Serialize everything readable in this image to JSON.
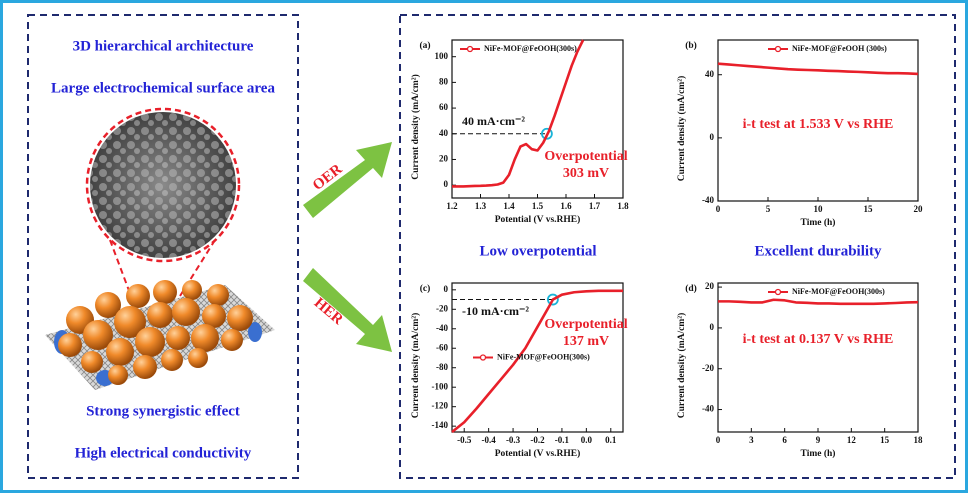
{
  "left_panel": {
    "texts": [
      "3D hierarchical architecture",
      "Large electrochemical surface area",
      "Strong synergistic effect",
      "High electrical conductivity"
    ]
  },
  "arrows": {
    "upper": "OER",
    "lower": "HER"
  },
  "captions": [
    "Low overpotential",
    "Excellent durability"
  ],
  "chart_data": [
    {
      "type": "line",
      "panel_label": "(a)",
      "x_label": "Potential (V vs.RHE)",
      "y_label": "Current density (mA/cm²)",
      "x": [
        1.2,
        1.22,
        1.24,
        1.26,
        1.28,
        1.3,
        1.32,
        1.34,
        1.36,
        1.38,
        1.4,
        1.42,
        1.44,
        1.46,
        1.48,
        1.5,
        1.52,
        1.54,
        1.56,
        1.58,
        1.6,
        1.62,
        1.64,
        1.66
      ],
      "series": [
        {
          "name": "NiFe-MOF@FeOOH(300s)",
          "color": "#e8202a",
          "values": [
            -1,
            -1,
            -1,
            -0.8,
            -0.6,
            -0.5,
            -0.3,
            0,
            0.5,
            2,
            8,
            20,
            30,
            32,
            28,
            27,
            33,
            42,
            54,
            67,
            80,
            93,
            104,
            113
          ]
        }
      ],
      "xlim": [
        1.2,
        1.8
      ],
      "ylim": [
        -10,
        113
      ],
      "xticks": [
        1.2,
        1.3,
        1.4,
        1.5,
        1.6,
        1.7,
        1.8
      ],
      "yticks": [
        0,
        20,
        40,
        60,
        80,
        100
      ],
      "legend": "upper left",
      "reference": {
        "x": 1.533,
        "y": 40
      },
      "annotations": [
        "40 mA·cm⁻²",
        "Overpotential",
        "303 mV"
      ]
    },
    {
      "type": "line",
      "panel_label": "(b)",
      "x_label": "Time (h)",
      "y_label": "Current density (mA/cm²)",
      "x": [
        0,
        1,
        2,
        3,
        4,
        5,
        6,
        7,
        8,
        9,
        10,
        11,
        12,
        13,
        14,
        15,
        16,
        17,
        18,
        19,
        20
      ],
      "series": [
        {
          "name": "NiFe-MOF@FeOOH (300s)",
          "color": "#e8202a",
          "values": [
            47,
            46.5,
            46,
            45.5,
            45,
            44.5,
            44,
            43.5,
            43.2,
            43,
            42.8,
            42.5,
            42.3,
            42,
            41.8,
            41.5,
            41.2,
            41,
            41,
            40.8,
            40.5
          ]
        }
      ],
      "xlim": [
        0,
        20
      ],
      "ylim": [
        -40,
        62
      ],
      "xticks": [
        0,
        5,
        10,
        15,
        20
      ],
      "yticks": [
        -40,
        0,
        40
      ],
      "legend": "upper right",
      "annotations": [
        "i-t test at 1.533 V vs RHE"
      ]
    },
    {
      "type": "line",
      "panel_label": "(c)",
      "x_label": "Potential (V vs.RHE)",
      "y_label": "Current density (mA/cm²)",
      "x": [
        -0.55,
        -0.5,
        -0.45,
        -0.4,
        -0.35,
        -0.3,
        -0.25,
        -0.2,
        -0.15,
        -0.137,
        -0.1,
        -0.05,
        0,
        0.05,
        0.1,
        0.15
      ],
      "series": [
        {
          "name": "NiFe-MOF@FeOOH(300s)",
          "color": "#e8202a",
          "values": [
            -146,
            -136,
            -122,
            -107,
            -92,
            -77,
            -60,
            -38,
            -16,
            -10,
            -5,
            -2.5,
            -1.5,
            -1,
            -1,
            -1
          ]
        }
      ],
      "xlim": [
        -0.55,
        0.15
      ],
      "ylim": [
        -146,
        7
      ],
      "xticks": [
        -0.5,
        -0.4,
        -0.3,
        -0.2,
        -0.1,
        {
          "value": 0,
          "label": "0.0"
        },
        0.1
      ],
      "yticks": [
        -140,
        -120,
        -100,
        -80,
        -60,
        -40,
        -20,
        0
      ],
      "legend": "center right",
      "reference": {
        "x": -0.137,
        "y": -10
      },
      "annotations": [
        "-10 mA·cm⁻²",
        "Overpotential",
        "137 mV"
      ]
    },
    {
      "type": "line",
      "panel_label": "(d)",
      "x_label": "Time (h)",
      "y_label": "Current density (mA/cm²)",
      "x": [
        0,
        1,
        2,
        3,
        4,
        5,
        6,
        7,
        8,
        9,
        10,
        11,
        12,
        13,
        14,
        15,
        16,
        17,
        18
      ],
      "series": [
        {
          "name": "NiFe-MOF@FeOOH(300s)",
          "color": "#e8202a",
          "values": [
            13,
            13,
            12.8,
            12.5,
            12.5,
            13.8,
            13.5,
            12.5,
            12.3,
            12,
            12,
            11.8,
            11.8,
            11.8,
            11.8,
            12,
            12.2,
            12.5,
            12.6
          ]
        }
      ],
      "xlim": [
        0,
        18
      ],
      "ylim": [
        -51,
        22
      ],
      "xticks": [
        0,
        3,
        6,
        9,
        12,
        15,
        18
      ],
      "yticks": [
        -40,
        -20,
        0,
        20
      ],
      "legend": "upper right",
      "annotations": [
        "i-t test at 0.137 V vs RHE"
      ]
    }
  ]
}
